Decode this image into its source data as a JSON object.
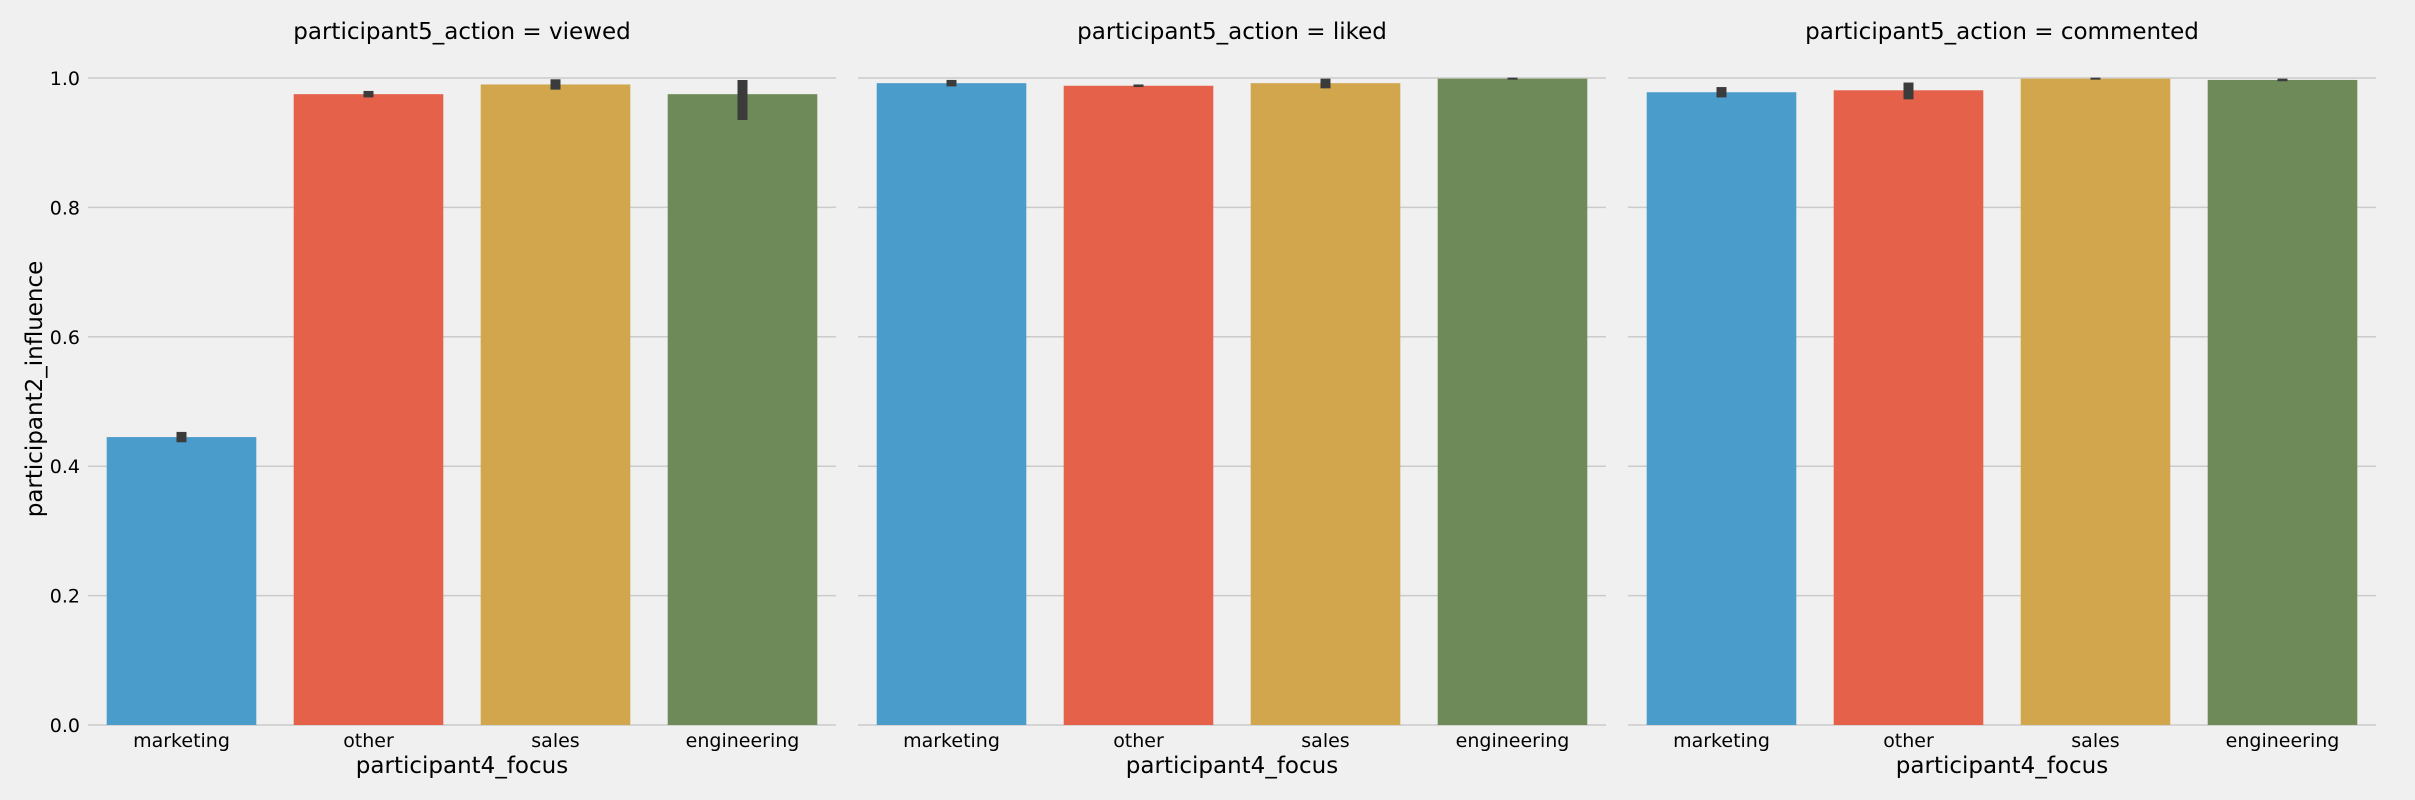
{
  "chart_data": {
    "type": "bar",
    "ylabel": "participant2_influence",
    "xlabel": "participant4_focus",
    "ylim": [
      0,
      1.05
    ],
    "yticks": [
      "0.0",
      "0.2",
      "0.4",
      "0.6",
      "0.8",
      "1.0"
    ],
    "grid": true,
    "categories": [
      "marketing",
      "other",
      "sales",
      "engineering"
    ],
    "colors": [
      "#4a9ccb",
      "#e5614a",
      "#d1a64c",
      "#6e8a58"
    ],
    "error_bar_color": "#3b3b3b",
    "facets": [
      {
        "title": "participant5_action = viewed",
        "values": [
          0.445,
          0.975,
          0.99,
          0.975
        ],
        "ci": [
          [
            0.437,
            0.453
          ],
          [
            0.97,
            0.98
          ],
          [
            0.982,
            0.998
          ],
          [
            0.935,
            0.997
          ]
        ]
      },
      {
        "title": "participant5_action = liked",
        "values": [
          0.992,
          0.988,
          0.992,
          0.999
        ],
        "ci": [
          [
            0.987,
            0.997
          ],
          [
            0.986,
            0.99
          ],
          [
            0.984,
            0.999
          ],
          [
            0.998,
            1.0
          ]
        ]
      },
      {
        "title": "participant5_action = commented",
        "values": [
          0.978,
          0.981,
          0.999,
          0.997
        ],
        "ci": [
          [
            0.97,
            0.986
          ],
          [
            0.967,
            0.993
          ],
          [
            0.999,
            0.999
          ],
          [
            0.995,
            0.999
          ]
        ]
      }
    ]
  }
}
